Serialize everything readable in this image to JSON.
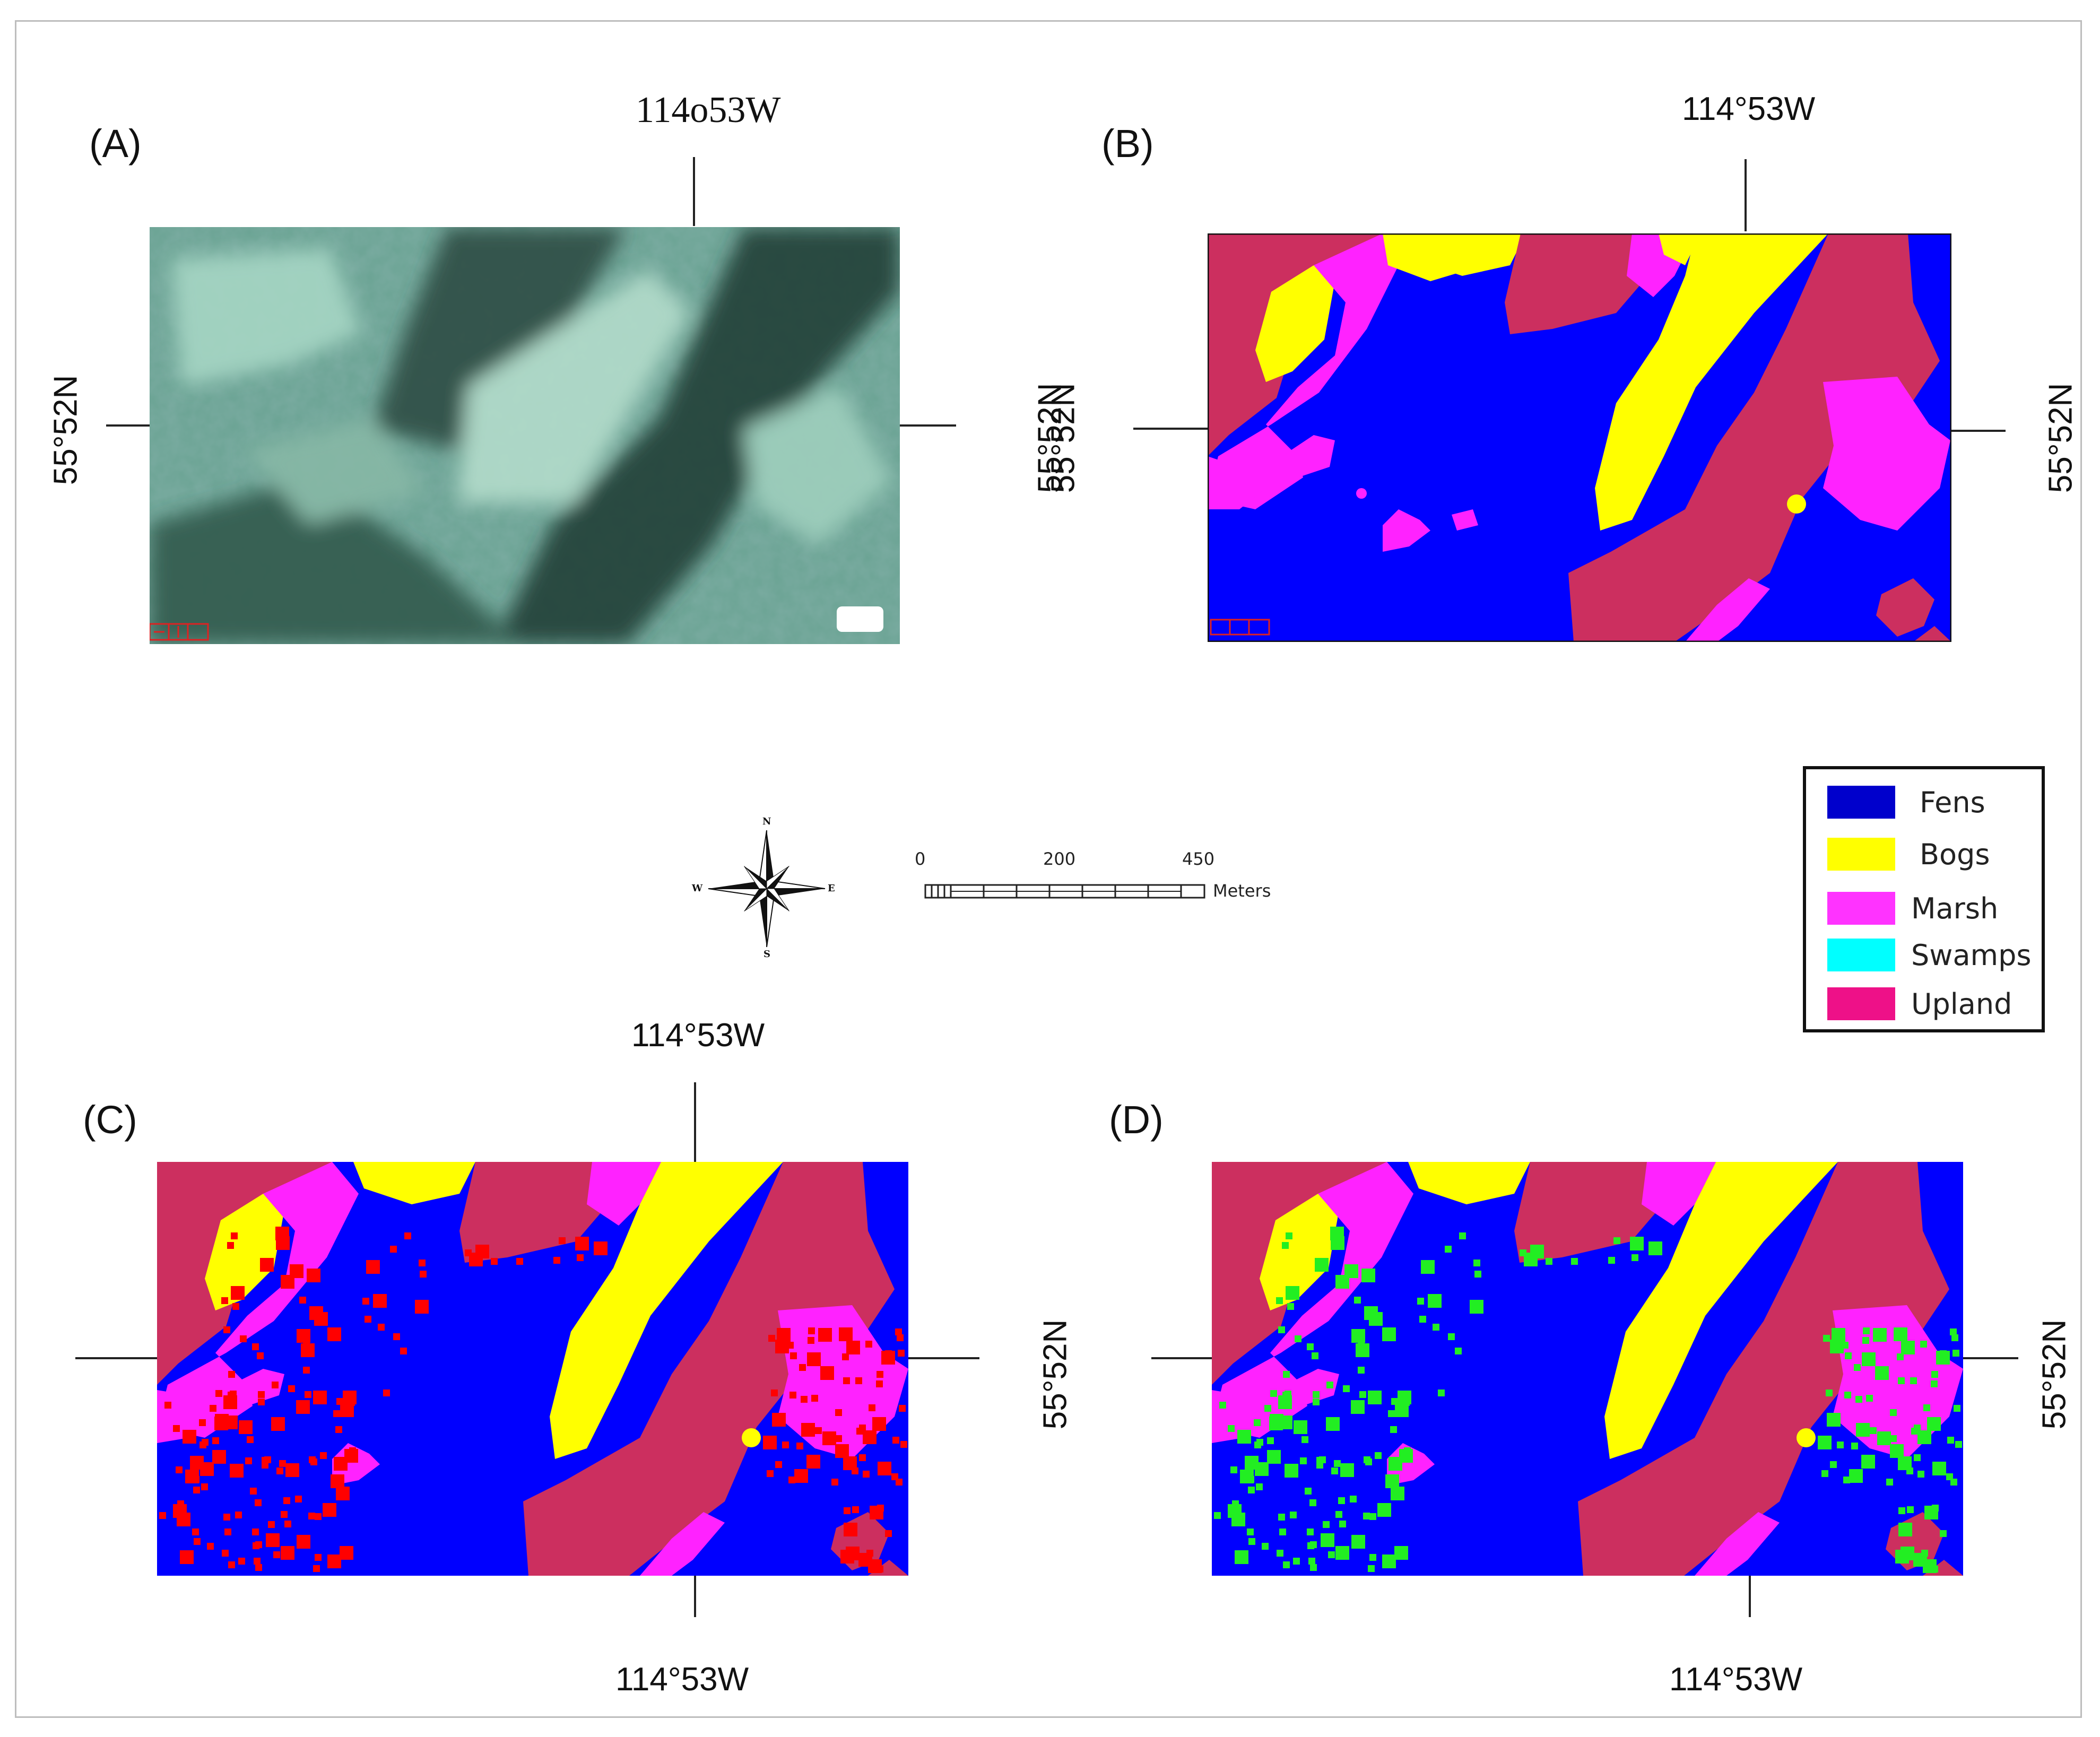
{
  "panels": [
    {
      "label": "(A)",
      "coord_top": "114o53W",
      "coord_left": "55°52N",
      "coord_right": "55°52N",
      "kind": "satellite"
    },
    {
      "label": "(B)",
      "coord_top": "114°53W",
      "coord_left": "55°52N",
      "coord_right": "55°52N",
      "kind": "classified"
    },
    {
      "label": "(C)",
      "coord_top": "114°53W",
      "coord_bottom": "114°53W",
      "coord_right": "55°52N",
      "kind": "classified-red"
    },
    {
      "label": "(D)",
      "coord_top": "",
      "coord_bottom": "114°53W",
      "coord_right": "55°52N",
      "kind": "classified-green"
    }
  ],
  "legend": {
    "items": [
      {
        "label": "Fens",
        "color": "#0000cc"
      },
      {
        "label": "Bogs",
        "color": "#ffff00"
      },
      {
        "label": "Marsh",
        "color": "#ff33ff"
      },
      {
        "label": "Swamps",
        "color": "#00ffff"
      },
      {
        "label": "Upland",
        "color": "#ee1188"
      }
    ]
  },
  "scale_bar": {
    "ticks": [
      "0",
      "200",
      "450"
    ],
    "unit": "Meters"
  },
  "compass": {
    "n": "N",
    "s": "S",
    "e": "E",
    "w": "W"
  },
  "colors": {
    "fens": "#0000ff",
    "bogs": "#ffff00",
    "marsh": "#ff22ff",
    "upland": "#cc2f5f",
    "error_red": "#ff0000",
    "error_green": "#22ee22"
  }
}
